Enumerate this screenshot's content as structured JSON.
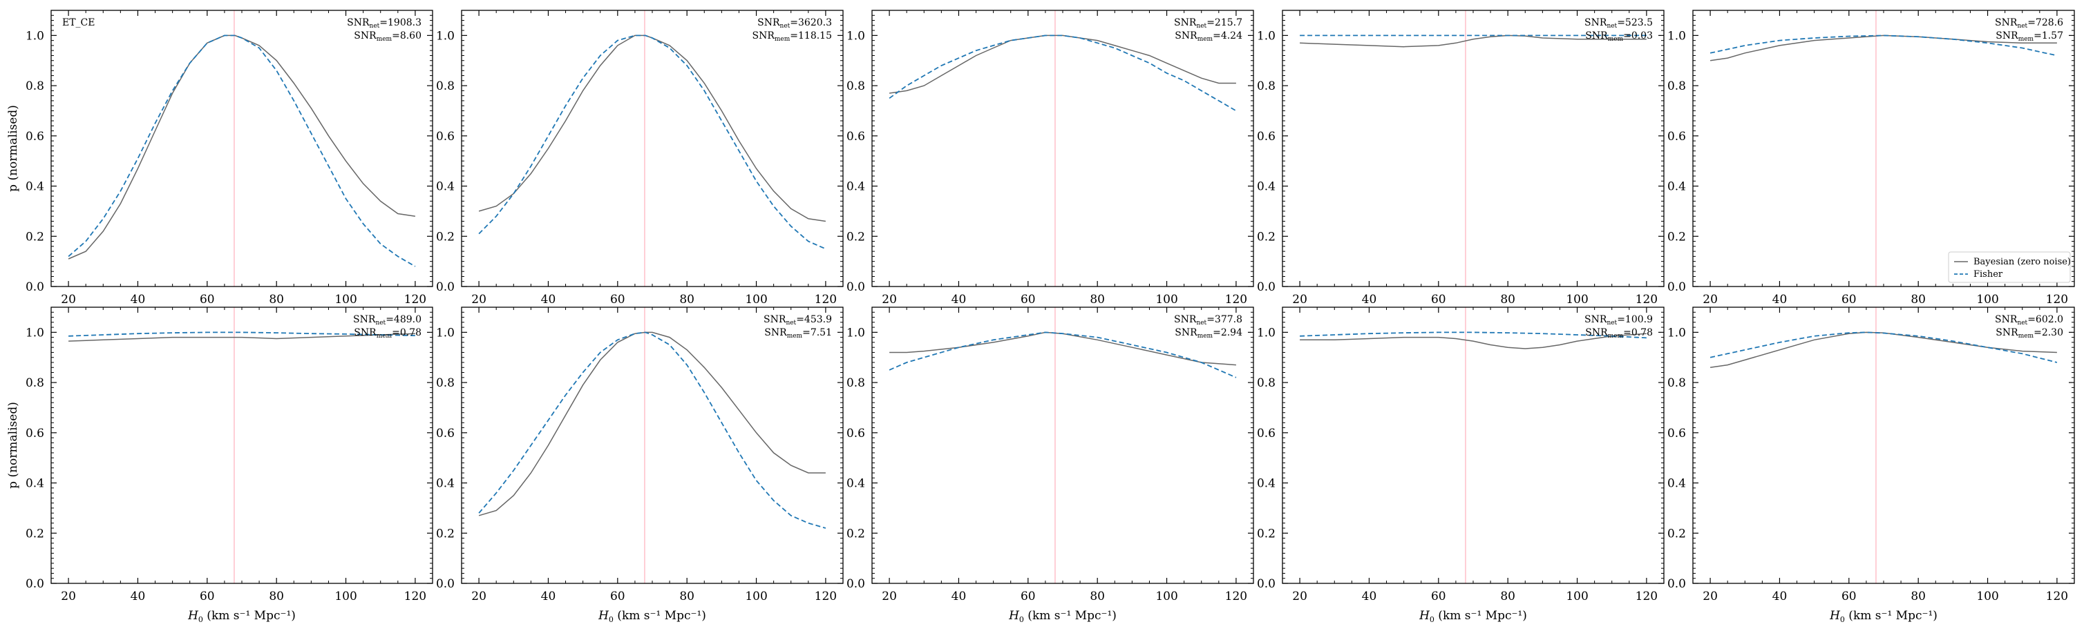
{
  "figure": {
    "ylabel": "p (normalised)",
    "xlabel_main": "H",
    "xlabel_sub": "0",
    "xlabel_units": " (km s⁻¹ Mpc⁻¹)",
    "tag": "ET_CE",
    "snr_prefix": "SNR",
    "snr_sub_1": "net",
    "snr_sub_2": "mem",
    "true_value": 67.8,
    "colors": {
      "bayesian": "#666666",
      "fisher": "#1f77b4",
      "truth": "#ffb6c1"
    }
  },
  "legend": {
    "bayesian": "Bayesian (zero noise)",
    "fisher": "Fisher"
  },
  "chart_data": [
    {
      "type": "line",
      "snr_net": "=1908.3",
      "snr_mem": "=8.60",
      "xlim": [
        15,
        125
      ],
      "ylim": [
        0,
        1.1
      ],
      "xticks": [
        20,
        40,
        60,
        80,
        100,
        120
      ],
      "yticks": [
        0.0,
        0.2,
        0.4,
        0.6,
        0.8,
        1.0
      ],
      "series": [
        {
          "name": "Bayesian (zero noise)",
          "x": [
            20,
            25,
            30,
            35,
            40,
            45,
            50,
            55,
            60,
            65,
            68,
            70,
            75,
            80,
            85,
            90,
            95,
            100,
            105,
            110,
            115,
            120
          ],
          "y": [
            0.11,
            0.14,
            0.22,
            0.33,
            0.47,
            0.62,
            0.77,
            0.89,
            0.97,
            1.0,
            1.0,
            0.99,
            0.96,
            0.9,
            0.81,
            0.71,
            0.6,
            0.5,
            0.41,
            0.34,
            0.29,
            0.28
          ]
        },
        {
          "name": "Fisher",
          "x": [
            20,
            25,
            30,
            35,
            40,
            45,
            50,
            55,
            60,
            65,
            68,
            70,
            75,
            80,
            85,
            90,
            95,
            100,
            105,
            110,
            115,
            120
          ],
          "y": [
            0.12,
            0.18,
            0.27,
            0.38,
            0.51,
            0.65,
            0.78,
            0.89,
            0.97,
            1.0,
            1.0,
            0.99,
            0.95,
            0.86,
            0.74,
            0.61,
            0.48,
            0.35,
            0.25,
            0.17,
            0.12,
            0.08
          ]
        }
      ]
    },
    {
      "type": "line",
      "snr_net": "=3620.3",
      "snr_mem": "=118.15",
      "xlim": [
        15,
        125
      ],
      "ylim": [
        0,
        1.1
      ],
      "xticks": [
        20,
        40,
        60,
        80,
        100,
        120
      ],
      "yticks": [
        0.0,
        0.2,
        0.4,
        0.6,
        0.8,
        1.0
      ],
      "series": [
        {
          "name": "Bayesian (zero noise)",
          "x": [
            20,
            25,
            30,
            35,
            40,
            45,
            50,
            55,
            60,
            65,
            68,
            70,
            75,
            80,
            85,
            90,
            95,
            100,
            105,
            110,
            115,
            120
          ],
          "y": [
            0.3,
            0.32,
            0.37,
            0.45,
            0.55,
            0.66,
            0.78,
            0.88,
            0.96,
            1.0,
            1.0,
            0.99,
            0.96,
            0.9,
            0.81,
            0.7,
            0.58,
            0.47,
            0.38,
            0.31,
            0.27,
            0.26
          ]
        },
        {
          "name": "Fisher",
          "x": [
            20,
            25,
            30,
            35,
            40,
            45,
            50,
            55,
            60,
            65,
            68,
            70,
            75,
            80,
            85,
            90,
            95,
            100,
            105,
            110,
            115,
            120
          ],
          "y": [
            0.21,
            0.28,
            0.37,
            0.48,
            0.6,
            0.72,
            0.83,
            0.92,
            0.98,
            1.0,
            1.0,
            0.99,
            0.95,
            0.88,
            0.78,
            0.66,
            0.54,
            0.42,
            0.32,
            0.24,
            0.18,
            0.15
          ]
        }
      ]
    },
    {
      "type": "line",
      "snr_net": "=215.7",
      "snr_mem": "=4.24",
      "xlim": [
        15,
        125
      ],
      "ylim": [
        0,
        1.1
      ],
      "xticks": [
        20,
        40,
        60,
        80,
        100,
        120
      ],
      "yticks": [
        0.0,
        0.2,
        0.4,
        0.6,
        0.8,
        1.0
      ],
      "series": [
        {
          "name": "Bayesian (zero noise)",
          "x": [
            20,
            25,
            30,
            35,
            40,
            45,
            50,
            55,
            60,
            65,
            70,
            75,
            80,
            85,
            90,
            95,
            100,
            105,
            110,
            115,
            120
          ],
          "y": [
            0.77,
            0.78,
            0.8,
            0.84,
            0.88,
            0.92,
            0.95,
            0.98,
            0.99,
            1.0,
            1.0,
            0.99,
            0.98,
            0.96,
            0.94,
            0.92,
            0.89,
            0.86,
            0.83,
            0.81,
            0.81
          ]
        },
        {
          "name": "Fisher",
          "x": [
            20,
            25,
            30,
            35,
            40,
            45,
            50,
            55,
            60,
            65,
            70,
            75,
            80,
            85,
            90,
            95,
            100,
            105,
            110,
            115,
            120
          ],
          "y": [
            0.75,
            0.8,
            0.84,
            0.88,
            0.91,
            0.94,
            0.96,
            0.98,
            0.99,
            1.0,
            1.0,
            0.99,
            0.97,
            0.95,
            0.92,
            0.89,
            0.85,
            0.82,
            0.78,
            0.74,
            0.7
          ]
        }
      ]
    },
    {
      "type": "line",
      "snr_net": "=523.5",
      "snr_mem": "=0.03",
      "xlim": [
        15,
        125
      ],
      "ylim": [
        0,
        1.1
      ],
      "xticks": [
        20,
        40,
        60,
        80,
        100,
        120
      ],
      "yticks": [
        0.0,
        0.2,
        0.4,
        0.6,
        0.8,
        1.0
      ],
      "series": [
        {
          "name": "Bayesian (zero noise)",
          "x": [
            20,
            30,
            40,
            50,
            60,
            65,
            70,
            75,
            80,
            85,
            90,
            100,
            110,
            120
          ],
          "y": [
            0.97,
            0.965,
            0.96,
            0.955,
            0.96,
            0.97,
            0.985,
            0.995,
            1.0,
            0.998,
            0.99,
            0.985,
            0.985,
            0.985
          ]
        },
        {
          "name": "Fisher",
          "x": [
            20,
            40,
            60,
            80,
            100,
            120
          ],
          "y": [
            1.0,
            1.0,
            1.0,
            1.0,
            1.0,
            1.0
          ]
        }
      ]
    },
    {
      "type": "line",
      "snr_net": "=728.6",
      "snr_mem": "=1.57",
      "xlim": [
        15,
        125
      ],
      "ylim": [
        0,
        1.1
      ],
      "xticks": [
        20,
        40,
        60,
        80,
        100,
        120
      ],
      "yticks": [
        0.0,
        0.2,
        0.4,
        0.6,
        0.8,
        1.0
      ],
      "series": [
        {
          "name": "Bayesian (zero noise)",
          "x": [
            20,
            25,
            30,
            40,
            50,
            60,
            70,
            80,
            90,
            100,
            110,
            120
          ],
          "y": [
            0.9,
            0.91,
            0.93,
            0.96,
            0.98,
            0.99,
            1.0,
            0.995,
            0.985,
            0.975,
            0.97,
            0.97
          ]
        },
        {
          "name": "Fisher",
          "x": [
            20,
            25,
            30,
            40,
            50,
            60,
            70,
            80,
            90,
            100,
            110,
            120
          ],
          "y": [
            0.93,
            0.945,
            0.96,
            0.98,
            0.99,
            0.997,
            1.0,
            0.995,
            0.985,
            0.97,
            0.95,
            0.92
          ]
        }
      ]
    },
    {
      "type": "line",
      "snr_net": "=489.0",
      "snr_mem": "=0.78",
      "xlim": [
        15,
        125
      ],
      "ylim": [
        0,
        1.1
      ],
      "xticks": [
        20,
        40,
        60,
        80,
        100,
        120
      ],
      "yticks": [
        0.0,
        0.2,
        0.4,
        0.6,
        0.8,
        1.0
      ],
      "series": [
        {
          "name": "Bayesian (zero noise)",
          "x": [
            20,
            30,
            40,
            50,
            60,
            70,
            80,
            90,
            100,
            110,
            120
          ],
          "y": [
            0.965,
            0.97,
            0.975,
            0.98,
            0.98,
            0.98,
            0.975,
            0.98,
            0.985,
            0.99,
            0.995
          ]
        },
        {
          "name": "Fisher",
          "x": [
            20,
            30,
            40,
            50,
            60,
            70,
            80,
            90,
            100,
            110,
            120
          ],
          "y": [
            0.985,
            0.99,
            0.995,
            0.998,
            1.0,
            1.0,
            0.998,
            0.995,
            0.993,
            0.99,
            0.987
          ]
        }
      ]
    },
    {
      "type": "line",
      "snr_net": "=453.9",
      "snr_mem": "=7.51",
      "xlim": [
        15,
        125
      ],
      "ylim": [
        0,
        1.1
      ],
      "xticks": [
        20,
        40,
        60,
        80,
        100,
        120
      ],
      "yticks": [
        0.0,
        0.2,
        0.4,
        0.6,
        0.8,
        1.0
      ],
      "series": [
        {
          "name": "Bayesian (zero noise)",
          "x": [
            20,
            25,
            30,
            35,
            40,
            45,
            50,
            55,
            60,
            65,
            68,
            70,
            75,
            80,
            85,
            90,
            95,
            100,
            105,
            110,
            115,
            120
          ],
          "y": [
            0.27,
            0.29,
            0.35,
            0.44,
            0.55,
            0.67,
            0.79,
            0.89,
            0.96,
            0.995,
            1.0,
            1.0,
            0.98,
            0.93,
            0.86,
            0.78,
            0.69,
            0.6,
            0.52,
            0.47,
            0.44,
            0.44
          ]
        },
        {
          "name": "Fisher",
          "x": [
            20,
            25,
            30,
            35,
            40,
            45,
            50,
            55,
            60,
            65,
            68,
            70,
            75,
            80,
            85,
            90,
            95,
            100,
            105,
            110,
            115,
            120
          ],
          "y": [
            0.28,
            0.36,
            0.45,
            0.55,
            0.65,
            0.75,
            0.84,
            0.92,
            0.97,
            0.995,
            1.0,
            0.99,
            0.95,
            0.87,
            0.76,
            0.64,
            0.52,
            0.41,
            0.33,
            0.27,
            0.24,
            0.22
          ]
        }
      ]
    },
    {
      "type": "line",
      "snr_net": "=377.8",
      "snr_mem": "=2.94",
      "xlim": [
        15,
        125
      ],
      "ylim": [
        0,
        1.1
      ],
      "xticks": [
        20,
        40,
        60,
        80,
        100,
        120
      ],
      "yticks": [
        0.0,
        0.2,
        0.4,
        0.6,
        0.8,
        1.0
      ],
      "series": [
        {
          "name": "Bayesian (zero noise)",
          "x": [
            20,
            25,
            30,
            40,
            50,
            60,
            65,
            70,
            80,
            90,
            100,
            110,
            120
          ],
          "y": [
            0.92,
            0.92,
            0.925,
            0.94,
            0.96,
            0.985,
            1.0,
            0.995,
            0.97,
            0.94,
            0.91,
            0.88,
            0.87
          ]
        },
        {
          "name": "Fisher",
          "x": [
            20,
            25,
            30,
            40,
            50,
            60,
            65,
            70,
            80,
            90,
            100,
            110,
            120
          ],
          "y": [
            0.85,
            0.88,
            0.9,
            0.94,
            0.97,
            0.99,
            1.0,
            0.995,
            0.98,
            0.95,
            0.92,
            0.88,
            0.82
          ]
        }
      ]
    },
    {
      "type": "line",
      "snr_net": "=100.9",
      "snr_mem": "=0.78",
      "xlim": [
        15,
        125
      ],
      "ylim": [
        0,
        1.1
      ],
      "xticks": [
        20,
        40,
        60,
        80,
        100,
        120
      ],
      "yticks": [
        0.0,
        0.2,
        0.4,
        0.6,
        0.8,
        1.0
      ],
      "series": [
        {
          "name": "Bayesian (zero noise)",
          "x": [
            20,
            30,
            40,
            50,
            60,
            65,
            70,
            75,
            80,
            85,
            90,
            95,
            100,
            110,
            120
          ],
          "y": [
            0.97,
            0.97,
            0.975,
            0.98,
            0.98,
            0.975,
            0.965,
            0.95,
            0.94,
            0.935,
            0.94,
            0.95,
            0.965,
            0.985,
            0.995
          ]
        },
        {
          "name": "Fisher",
          "x": [
            20,
            30,
            40,
            50,
            60,
            70,
            80,
            90,
            100,
            110,
            120
          ],
          "y": [
            0.985,
            0.99,
            0.995,
            0.998,
            1.0,
            1.0,
            0.998,
            0.995,
            0.99,
            0.985,
            0.978
          ]
        }
      ]
    },
    {
      "type": "line",
      "snr_net": "=602.0",
      "snr_mem": "=2.30",
      "xlim": [
        15,
        125
      ],
      "ylim": [
        0,
        1.1
      ],
      "xticks": [
        20,
        40,
        60,
        80,
        100,
        120
      ],
      "yticks": [
        0.0,
        0.2,
        0.4,
        0.6,
        0.8,
        1.0
      ],
      "series": [
        {
          "name": "Bayesian (zero noise)",
          "x": [
            20,
            25,
            30,
            40,
            50,
            60,
            65,
            70,
            80,
            90,
            100,
            110,
            120
          ],
          "y": [
            0.86,
            0.87,
            0.89,
            0.93,
            0.97,
            0.995,
            1.0,
            0.998,
            0.98,
            0.96,
            0.94,
            0.925,
            0.92
          ]
        },
        {
          "name": "Fisher",
          "x": [
            20,
            25,
            30,
            40,
            50,
            60,
            65,
            70,
            80,
            90,
            100,
            110,
            120
          ],
          "y": [
            0.9,
            0.915,
            0.93,
            0.96,
            0.985,
            0.998,
            1.0,
            0.997,
            0.985,
            0.965,
            0.94,
            0.915,
            0.88
          ]
        }
      ]
    }
  ]
}
